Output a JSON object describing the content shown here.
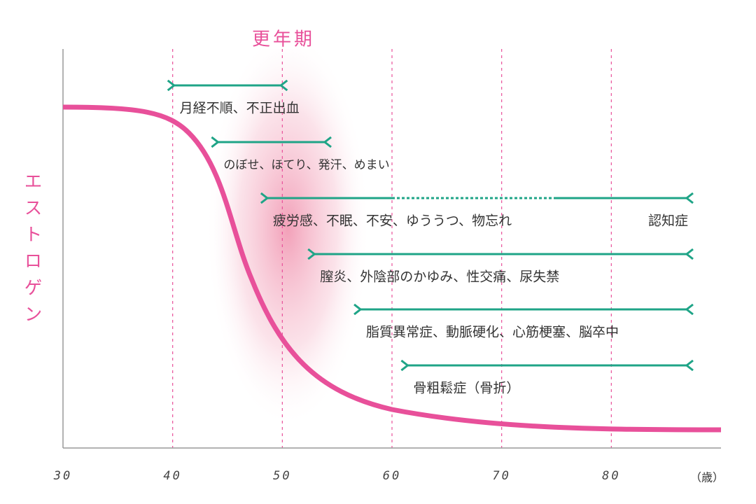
{
  "title": "更年期",
  "y_axis_label": "エストロゲン",
  "x_axis": {
    "unit_label": "（歳）",
    "lim": [
      30,
      90
    ],
    "ticks": [
      30,
      40,
      50,
      60,
      70,
      80
    ]
  },
  "menopause": [
    43,
    58
  ],
  "ranges": [
    {
      "label": "月経不順、不正出血",
      "start": 40,
      "end": 50
    },
    {
      "label": "のぼせ、ほてり、発汗、めまい",
      "start": 44,
      "end": 54
    },
    {
      "label": "疲労感、不眠、不安、ゆううつ、物忘れ",
      "end_label": "認知症",
      "start": 48.5,
      "end": 87,
      "dotted": [
        60,
        75
      ]
    },
    {
      "label": "膣炎、外陰部のかゆみ、性交痛、尿失禁",
      "start": 52.8,
      "end": 87
    },
    {
      "label": "脂質異常症、動脈硬化、心筋梗塞、脳卒中",
      "start": 57,
      "end": 87
    },
    {
      "label": "骨粗鬆症（骨折）",
      "start": 61.3,
      "end": 87
    }
  ]
}
